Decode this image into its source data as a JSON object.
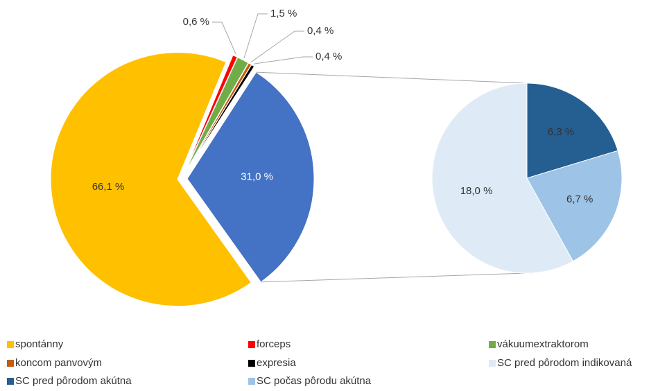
{
  "chart_data": {
    "type": "pie-of-pie",
    "main": {
      "categories": [
        "spontánny",
        "forceps",
        "vákuumextraktorom",
        "koncom panvovým",
        "expresia"
      ],
      "values": [
        66.1,
        0.6,
        1.5,
        0.4,
        0.4
      ],
      "value_labels": [
        "66,1 %",
        "0,6 %",
        "1,5 %",
        "0,4 %",
        "0,4 %"
      ],
      "colors": [
        "#FFC000",
        "#FF0000",
        "#70AD47",
        "#C55A11",
        "#000000"
      ]
    },
    "other": {
      "value": 31.0,
      "value_label": "31,0 %",
      "color": "#4472C4"
    },
    "secondary": {
      "categories": [
        "SC pred pôrodom indikovaná",
        "SC pred pôrodom akútna",
        "SC počas pôrodu akútna"
      ],
      "values": [
        18.0,
        6.3,
        6.7
      ],
      "value_labels": [
        "18,0 %",
        "6,3 %",
        "6,7 %"
      ],
      "colors": [
        "#DEEBF7",
        "#255E91",
        "#9DC3E6"
      ]
    }
  }
}
